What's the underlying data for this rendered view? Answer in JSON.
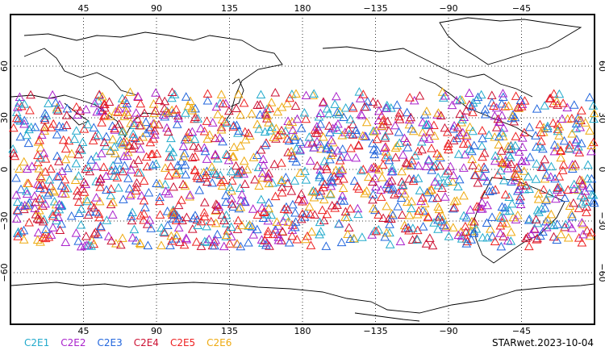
{
  "map": {
    "projection": "cylindrical",
    "lon_ticks_top": [
      "45",
      "90",
      "135",
      "180",
      "−135",
      "−90",
      "−45"
    ],
    "lon_ticks_bottom": [
      "45",
      "90",
      "135",
      "180",
      "−135",
      "−90",
      "−45"
    ],
    "lat_ticks_left": [
      "60",
      "30",
      "0",
      "−30",
      "−60"
    ],
    "lat_ticks_right": [
      "60",
      "30",
      "0",
      "−30",
      "−60"
    ],
    "lon_values": [
      45,
      90,
      135,
      180,
      225,
      270,
      315
    ],
    "lat_values": [
      60,
      30,
      0,
      -30,
      -60
    ],
    "lon_range": [
      0,
      360
    ],
    "lat_range": [
      -90,
      90
    ],
    "grid": true,
    "marker": "triangle-open"
  },
  "legend": {
    "placement": "bottom-left",
    "items": [
      {
        "label": "C2E1",
        "color": "#22aacc"
      },
      {
        "label": "C2E2",
        "color": "#aa22cc"
      },
      {
        "label": "C2E3",
        "color": "#2266dd"
      },
      {
        "label": "C2E4",
        "color": "#cc1133"
      },
      {
        "label": "C2E5",
        "color": "#ee2222"
      },
      {
        "label": "C2E6",
        "color": "#eeaa11"
      }
    ]
  },
  "stamp": "STARwet.2023-10-04",
  "chart_data": {
    "type": "scatter",
    "series": [
      {
        "name": "C2E1",
        "color": "#22aacc"
      },
      {
        "name": "C2E2",
        "color": "#aa22cc"
      },
      {
        "name": "C2E3",
        "color": "#2266dd"
      },
      {
        "name": "C2E4",
        "color": "#cc1133"
      },
      {
        "name": "C2E5",
        "color": "#ee2222"
      },
      {
        "name": "C2E6",
        "color": "#eeaa11"
      }
    ],
    "coverage": {
      "lat_min": -45,
      "lat_max": 45,
      "lon_min": 0,
      "lon_max": 360
    },
    "xlim": [
      0,
      360
    ],
    "ylim": [
      -90,
      90
    ]
  }
}
